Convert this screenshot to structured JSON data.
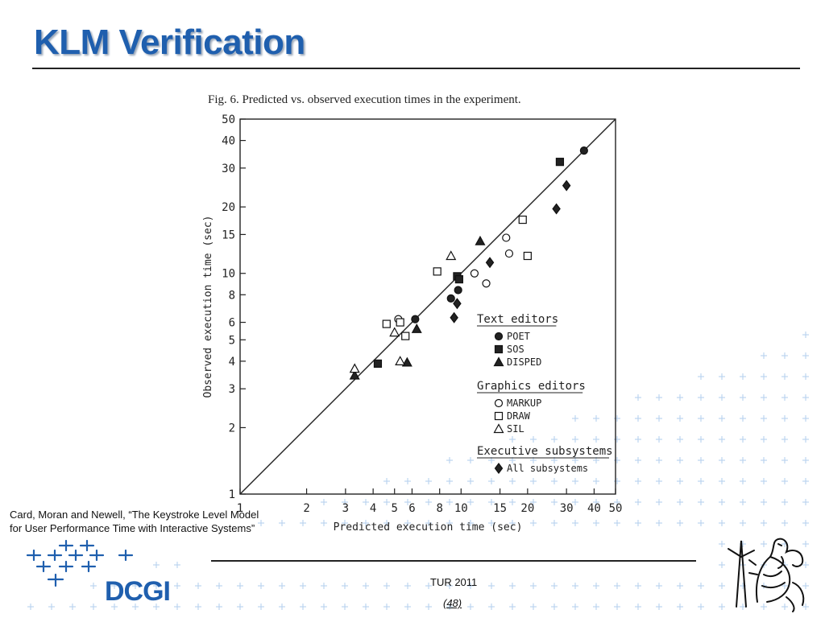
{
  "slide": {
    "title": "KLM Verification",
    "citation_line1": "Card, Moran and Newell, “The Keystroke Level Model",
    "citation_line2": "for User Performance Time with Interactive Systems”",
    "footer_left": "TUR 2011",
    "footer_page": "(48)",
    "logo_text": "DCGI"
  },
  "colors": {
    "title": "#1f5fae",
    "accent": "#1f5fae",
    "cross": "#bcd4f0"
  },
  "chart_data": {
    "type": "scatter",
    "title": "Fig. 6.  Predicted vs. observed execution times in the experiment.",
    "xlabel": "Predicted execution time (sec)",
    "ylabel": "Observed execution time (sec)",
    "xscale": "log",
    "yscale": "log",
    "xlim": [
      1,
      50
    ],
    "ylim": [
      1,
      50
    ],
    "xticks": [
      1,
      2,
      3,
      4,
      5,
      6,
      8,
      10,
      15,
      20,
      30,
      40,
      50
    ],
    "yticks": [
      1,
      2,
      3,
      4,
      5,
      6,
      8,
      10,
      15,
      20,
      30,
      40,
      50
    ],
    "reference_line": "y = x",
    "legend_position": "bottom-right",
    "legend_groups": [
      {
        "heading": "Text editors",
        "entries": [
          "POET",
          "SOS",
          "DISPED"
        ]
      },
      {
        "heading": "Graphics editors",
        "entries": [
          "MARKUP",
          "DRAW",
          "SIL"
        ]
      },
      {
        "heading": "Executive subsystems",
        "entries": [
          "All subsystems"
        ]
      }
    ],
    "series": [
      {
        "name": "POET",
        "marker": "circle-filled",
        "points": [
          [
            6.2,
            6.2
          ],
          [
            9.0,
            7.7
          ],
          [
            9.7,
            8.4
          ],
          [
            36,
            36
          ]
        ]
      },
      {
        "name": "SOS",
        "marker": "square-filled",
        "points": [
          [
            4.2,
            3.9
          ],
          [
            9.6,
            9.7
          ],
          [
            9.8,
            9.4
          ],
          [
            28,
            32
          ]
        ]
      },
      {
        "name": "DISPED",
        "marker": "triangle-filled",
        "points": [
          [
            3.3,
            3.45
          ],
          [
            5.7,
            3.95
          ],
          [
            6.3,
            5.6
          ],
          [
            12.2,
            14
          ]
        ]
      },
      {
        "name": "MARKUP",
        "marker": "circle-open",
        "points": [
          [
            5.2,
            6.2
          ],
          [
            11.5,
            10
          ],
          [
            13,
            9
          ],
          [
            16,
            14.5
          ],
          [
            16.5,
            12.3
          ]
        ]
      },
      {
        "name": "DRAW",
        "marker": "square-open",
        "points": [
          [
            4.6,
            5.9
          ],
          [
            5.3,
            6.0
          ],
          [
            5.6,
            5.2
          ],
          [
            7.8,
            10.2
          ],
          [
            19,
            17.5
          ],
          [
            20,
            12
          ]
        ]
      },
      {
        "name": "SIL",
        "marker": "triangle-open",
        "points": [
          [
            3.3,
            3.7
          ],
          [
            5.0,
            5.4
          ],
          [
            5.3,
            4.0
          ],
          [
            9.0,
            12
          ]
        ]
      },
      {
        "name": "All subsystems",
        "marker": "diamond-filled",
        "points": [
          [
            9.3,
            6.3
          ],
          [
            9.6,
            7.3
          ],
          [
            13.5,
            11.2
          ],
          [
            27,
            19.6
          ],
          [
            30,
            25
          ]
        ]
      }
    ]
  }
}
